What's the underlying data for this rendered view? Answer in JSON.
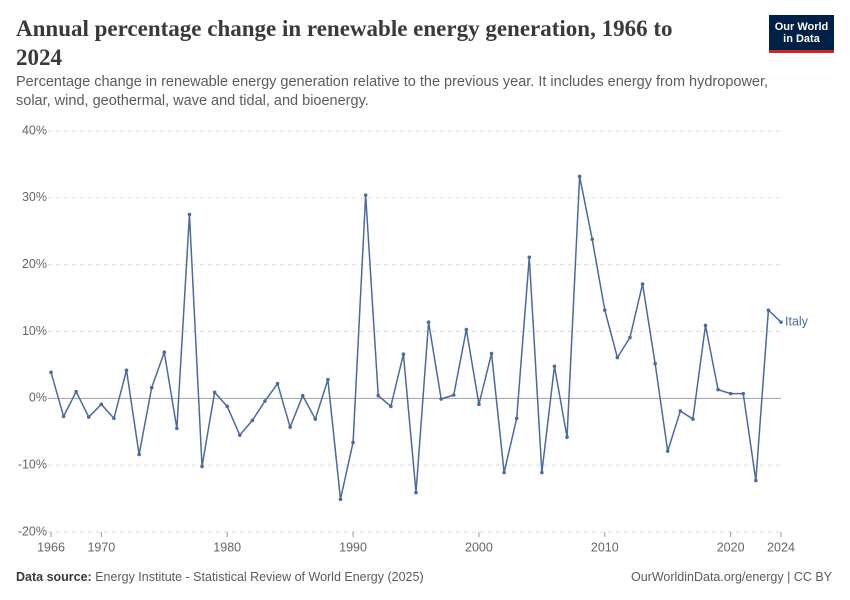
{
  "header": {
    "title": "Annual percentage change in renewable energy generation, 1966 to 2024",
    "subtitle": "Percentage change in renewable energy generation relative to the previous year. It includes energy from hydropower, solar, wind, geothermal, wave and tidal, and bioenergy."
  },
  "logo": {
    "line1": "Our World",
    "line2": "in Data"
  },
  "chart_data": {
    "type": "line",
    "x": [
      1966,
      1967,
      1968,
      1969,
      1970,
      1971,
      1972,
      1973,
      1974,
      1975,
      1976,
      1977,
      1978,
      1979,
      1980,
      1981,
      1982,
      1983,
      1984,
      1985,
      1986,
      1987,
      1988,
      1989,
      1990,
      1991,
      1992,
      1993,
      1994,
      1995,
      1996,
      1997,
      1998,
      1999,
      2000,
      2001,
      2002,
      2003,
      2004,
      2005,
      2006,
      2007,
      2008,
      2009,
      2010,
      2011,
      2012,
      2013,
      2014,
      2015,
      2016,
      2017,
      2018,
      2019,
      2020,
      2021,
      2022,
      2023,
      2024
    ],
    "series": [
      {
        "name": "Italy",
        "color": "#4c6a9c",
        "values": [
          3.9,
          -2.7,
          1.0,
          -2.8,
          -0.9,
          -3.0,
          4.2,
          -8.4,
          1.6,
          6.9,
          -4.5,
          27.5,
          -10.2,
          0.9,
          -1.2,
          -5.5,
          -3.3,
          -0.4,
          2.2,
          -4.3,
          0.4,
          -3.1,
          2.8,
          -15.1,
          -6.6,
          30.4,
          0.4,
          -1.2,
          6.6,
          -14.1,
          11.4,
          -0.1,
          0.5,
          10.3,
          -0.9,
          6.7,
          -11.1,
          -3.0,
          21.1,
          -11.1,
          4.8,
          -5.8,
          33.2,
          23.8,
          13.2,
          6.1,
          9.1,
          17.1,
          5.2,
          -7.9,
          -1.9,
          -3.1,
          10.9,
          1.3,
          0.7,
          0.7,
          -12.3,
          13.2,
          11.4
        ]
      }
    ],
    "xlim": [
      1966,
      2024
    ],
    "xticks": [
      1966,
      1970,
      1980,
      1990,
      2000,
      2010,
      2020,
      2024
    ],
    "ylim": [
      -20,
      40
    ],
    "yticks": [
      {
        "value": -20,
        "label": "-20%"
      },
      {
        "value": -10,
        "label": "-10%"
      },
      {
        "value": 0,
        "label": "0%"
      },
      {
        "value": 10,
        "label": "10%"
      },
      {
        "value": 20,
        "label": "20%"
      },
      {
        "value": 30,
        "label": "30%"
      },
      {
        "value": 40,
        "label": "40%"
      }
    ],
    "grid": true
  },
  "footer": {
    "source_label": "Data source:",
    "source": "Energy Institute - Statistical Review of World Energy (2025)",
    "license": "OurWorldinData.org/energy | CC BY"
  }
}
